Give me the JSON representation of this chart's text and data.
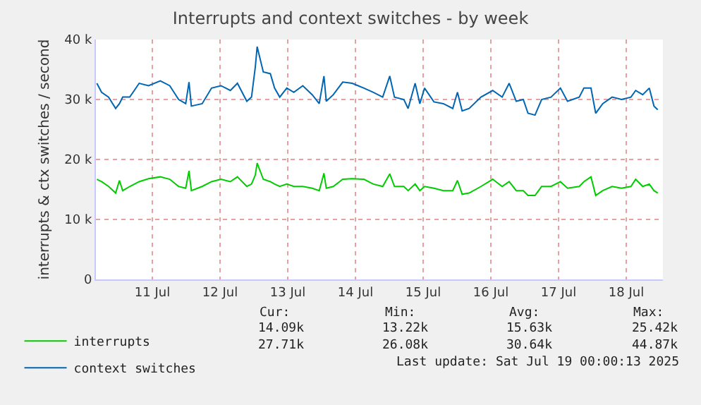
{
  "chart_data": {
    "type": "line",
    "title": "Interrupts and context switches - by week",
    "ylabel": "interrupts & ctx switches / second",
    "x": [
      "2025-07-10T16:20",
      "2025-07-10T18:00",
      "2025-07-10T20:30",
      "2025-07-10T23:00",
      "2025-07-11T00:20",
      "2025-07-11T01:30",
      "2025-07-11T04:00",
      "2025-07-11T07:20",
      "2025-07-11T10:40",
      "2025-07-11T14:50",
      "2025-07-11T18:10",
      "2025-07-11T21:20",
      "2025-07-11T23:50",
      "2025-07-12T01:00",
      "2025-07-12T01:50",
      "2025-07-12T05:40",
      "2025-07-12T09:00",
      "2025-07-12T12:20",
      "2025-07-12T15:40",
      "2025-07-12T18:10",
      "2025-07-12T21:30",
      "2025-07-12T23:10",
      "2025-07-13T00:30",
      "2025-07-13T01:10",
      "2025-07-13T03:20",
      "2025-07-13T05:50",
      "2025-07-13T07:20",
      "2025-07-13T09:10",
      "2025-07-13T11:40",
      "2025-07-13T14:10",
      "2025-07-13T17:20",
      "2025-07-13T20:40",
      "2025-07-13T23:10",
      "2025-07-14T00:50",
      "2025-07-14T01:40",
      "2025-07-14T04:10",
      "2025-07-14T07:30",
      "2025-07-14T10:50",
      "2025-07-14T15:00",
      "2025-07-14T18:20",
      "2025-07-14T21:40",
      "2025-07-15T00:10",
      "2025-07-15T01:50",
      "2025-07-15T05:10",
      "2025-07-15T06:40",
      "2025-07-15T09:10",
      "2025-07-15T10:50",
      "2025-07-15T12:30",
      "2025-07-15T15:50",
      "2025-07-15T19:10",
      "2025-07-15T22:30",
      "2025-07-16T00:10",
      "2025-07-16T01:50",
      "2025-07-16T04:20",
      "2025-07-16T08:30",
      "2025-07-16T12:40",
      "2025-07-16T16:00",
      "2025-07-16T18:30",
      "2025-07-16T21:00",
      "2025-07-16T23:30",
      "2025-07-17T01:10",
      "2025-07-17T03:40",
      "2025-07-17T06:00",
      "2025-07-17T09:20",
      "2025-07-17T12:40",
      "2025-07-17T15:10",
      "2025-07-17T19:20",
      "2025-07-17T21:00",
      "2025-07-17T23:30",
      "2025-07-18T01:10",
      "2025-07-18T03:40",
      "2025-07-18T07:00",
      "2025-07-18T10:20",
      "2025-07-18T13:40",
      "2025-07-18T15:20",
      "2025-07-18T17:50",
      "2025-07-18T20:10",
      "2025-07-18T21:50",
      "2025-07-18T23:10"
    ],
    "series": [
      {
        "name": "interrupts",
        "color": "#00cc00",
        "values": [
          16700,
          16300,
          15500,
          14400,
          16500,
          14800,
          15500,
          16300,
          16800,
          17100,
          16700,
          15500,
          15200,
          18100,
          14800,
          15500,
          16300,
          16700,
          16300,
          17100,
          15500,
          15900,
          17400,
          19400,
          16700,
          16300,
          15900,
          15500,
          15900,
          15500,
          15500,
          15200,
          14800,
          17700,
          15200,
          15500,
          16700,
          16800,
          16700,
          15900,
          15500,
          17600,
          15500,
          15500,
          14800,
          15900,
          14800,
          15500,
          15200,
          14800,
          14800,
          16500,
          14200,
          14400,
          15500,
          16700,
          15500,
          16300,
          14800,
          14800,
          14000,
          14000,
          15500,
          15500,
          16300,
          15200,
          15500,
          16300,
          17100,
          14000,
          14800,
          15500,
          15200,
          15500,
          16700,
          15500,
          15900,
          14800,
          14400
        ]
      },
      {
        "name": "context switches",
        "color": "#0066b3",
        "values": [
          32700,
          31200,
          30400,
          28500,
          29300,
          30400,
          30400,
          32700,
          32300,
          33100,
          32300,
          30000,
          29300,
          32900,
          28900,
          29300,
          31900,
          32300,
          31500,
          32700,
          29700,
          30400,
          35400,
          38800,
          34600,
          34300,
          31900,
          30400,
          31900,
          31200,
          32300,
          30800,
          29300,
          33900,
          29700,
          30800,
          32900,
          32700,
          31900,
          31200,
          30400,
          33900,
          30400,
          30000,
          28500,
          32700,
          29300,
          31900,
          29600,
          29300,
          28500,
          31200,
          28100,
          28500,
          30400,
          31500,
          30400,
          32700,
          29700,
          30000,
          27700,
          27400,
          30000,
          30400,
          31900,
          29700,
          30400,
          31900,
          31900,
          27700,
          29300,
          30400,
          30000,
          30400,
          31500,
          30800,
          31900,
          28900,
          28300
        ]
      }
    ],
    "xlim": [
      "2025-07-10T16:00",
      "2025-07-19T01:00"
    ],
    "xticks": [
      {
        "value": "2025-07-11T12:00",
        "label": "11 Jul"
      },
      {
        "value": "2025-07-12T12:00",
        "label": "12 Jul"
      },
      {
        "value": "2025-07-13T12:00",
        "label": "13 Jul"
      },
      {
        "value": "2025-07-14T12:00",
        "label": "14 Jul"
      },
      {
        "value": "2025-07-15T12:00",
        "label": "15 Jul"
      },
      {
        "value": "2025-07-16T12:00",
        "label": "16 Jul"
      },
      {
        "value": "2025-07-17T12:00",
        "label": "17 Jul"
      },
      {
        "value": "2025-07-18T12:00",
        "label": "18 Jul"
      }
    ],
    "ylim": [
      0,
      40000
    ],
    "yticks": [
      0,
      {
        "value": 10000,
        "label": "10 k"
      },
      {
        "value": 20000,
        "label": "20 k"
      },
      {
        "value": 30000,
        "label": "30 k"
      },
      {
        "value": 40000,
        "label": "40 k"
      }
    ],
    "grid": true,
    "legend": "bottom left",
    "annotations": [
      "Cur:",
      "Min:",
      "Avg:",
      "Max:",
      "14.09k",
      "13.22k",
      "15.63k",
      "25.42k",
      "27.71k",
      "26.08k",
      "30.64k",
      "44.87k",
      "Last update: Sat Jul 19 00:00:13 2025"
    ]
  }
}
